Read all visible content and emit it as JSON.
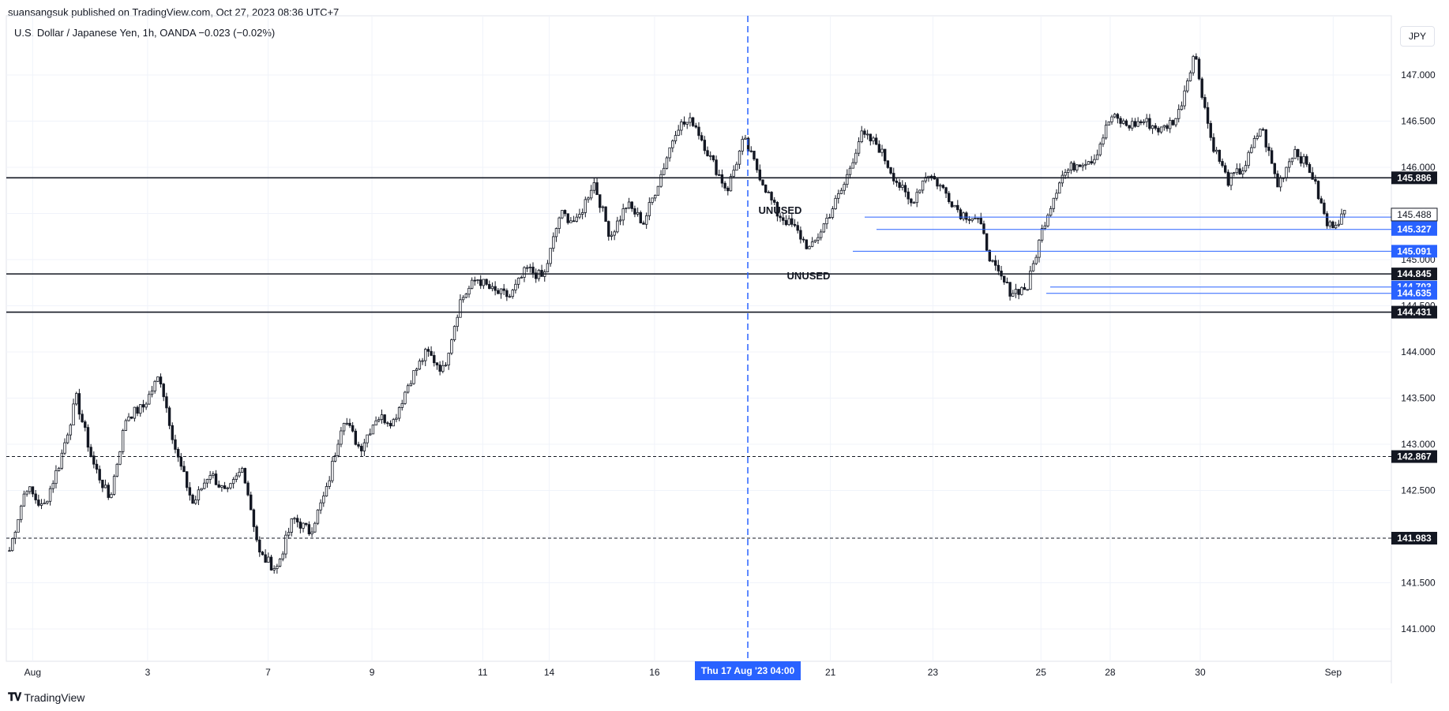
{
  "header": {
    "publisher_line": "suansangsuk published on TradingView.com, Oct 27, 2023 08:36 UTC+7",
    "symbol_line": "U.S. Dollar / Japanese Yen, 1h, OANDA  −0.023 (−0.02%)",
    "currency_button": "JPY"
  },
  "footer": {
    "logo_icon": "tradingview-logo-icon",
    "logo_text": "TradingView"
  },
  "chart_data": {
    "type": "candlestick",
    "symbol": "U.S. Dollar / Japanese Yen",
    "interval": "1h",
    "source": "OANDA",
    "change": "−0.023 (−0.02%)",
    "ylim": [
      140.65,
      147.4
    ],
    "y_ticks": [
      "147.000",
      "146.500",
      "146.000",
      "145.500",
      "145.000",
      "144.500",
      "144.000",
      "143.500",
      "143.000",
      "142.500",
      "142.000",
      "141.500",
      "141.000"
    ],
    "x_ticks": [
      "Aug",
      "3",
      "7",
      "9",
      "11",
      "14",
      "16",
      "21",
      "23",
      "25",
      "28",
      "30",
      "Sep"
    ],
    "crosshair_label": "Thu 17 Aug '23   04:00",
    "close_path": [
      {
        "date": "Aug 1",
        "close": 141.85
      },
      {
        "date": "Aug 1",
        "close": 142.55
      },
      {
        "date": "Aug 2",
        "close": 142.3
      },
      {
        "date": "Aug 2",
        "close": 142.8
      },
      {
        "date": "Aug 2",
        "close": 143.5
      },
      {
        "date": "Aug 3",
        "close": 142.8
      },
      {
        "date": "Aug 3",
        "close": 142.4
      },
      {
        "date": "Aug 3",
        "close": 143.3
      },
      {
        "date": "Aug 4",
        "close": 143.4
      },
      {
        "date": "Aug 4",
        "close": 143.75
      },
      {
        "date": "Aug 4",
        "close": 142.9
      },
      {
        "date": "Aug 4",
        "close": 142.35
      },
      {
        "date": "Aug 5",
        "close": 142.7
      },
      {
        "date": "Aug 6",
        "close": 142.45
      },
      {
        "date": "Aug 6",
        "close": 142.75
      },
      {
        "date": "Aug 7",
        "close": 141.8
      },
      {
        "date": "Aug 7",
        "close": 141.65
      },
      {
        "date": "Aug 8",
        "close": 142.2
      },
      {
        "date": "Aug 8",
        "close": 142.05
      },
      {
        "date": "Aug 8",
        "close": 142.5
      },
      {
        "date": "Aug 8",
        "close": 143.3
      },
      {
        "date": "Aug 9",
        "close": 142.95
      },
      {
        "date": "Aug 9",
        "close": 143.3
      },
      {
        "date": "Aug 10",
        "close": 143.25
      },
      {
        "date": "Aug 10",
        "close": 143.7
      },
      {
        "date": "Aug 10",
        "close": 144.0
      },
      {
        "date": "Aug 11",
        "close": 143.8
      },
      {
        "date": "Aug 11",
        "close": 144.55
      },
      {
        "date": "Aug 11",
        "close": 144.8
      },
      {
        "date": "Aug 12",
        "close": 144.65
      },
      {
        "date": "Aug 13",
        "close": 144.6
      },
      {
        "date": "Aug 14",
        "close": 144.9
      },
      {
        "date": "Aug 14",
        "close": 144.8
      },
      {
        "date": "Aug 14",
        "close": 145.5
      },
      {
        "date": "Aug 15",
        "close": 145.4
      },
      {
        "date": "Aug 15",
        "close": 145.85
      },
      {
        "date": "Aug 15",
        "close": 145.25
      },
      {
        "date": "Aug 16",
        "close": 145.6
      },
      {
        "date": "Aug 16",
        "close": 145.4
      },
      {
        "date": "Aug 16",
        "close": 145.9
      },
      {
        "date": "Aug 17",
        "close": 146.45
      },
      {
        "date": "Aug 17",
        "close": 146.5
      },
      {
        "date": "Aug 17",
        "close": 146.1
      },
      {
        "date": "Aug 18",
        "close": 145.75
      },
      {
        "date": "Aug 18",
        "close": 146.3
      },
      {
        "date": "Aug 18",
        "close": 145.9
      },
      {
        "date": "Aug 19",
        "close": 145.5
      },
      {
        "date": "Aug 20",
        "close": 145.35
      },
      {
        "date": "Aug 21",
        "close": 145.1
      },
      {
        "date": "Aug 21",
        "close": 145.45
      },
      {
        "date": "Aug 21",
        "close": 145.8
      },
      {
        "date": "Aug 22",
        "close": 146.35
      },
      {
        "date": "Aug 22",
        "close": 146.25
      },
      {
        "date": "Aug 22",
        "close": 145.9
      },
      {
        "date": "Aug 23",
        "close": 145.6
      },
      {
        "date": "Aug 23",
        "close": 145.95
      },
      {
        "date": "Aug 23",
        "close": 145.75
      },
      {
        "date": "Aug 24",
        "close": 145.5
      },
      {
        "date": "Aug 24",
        "close": 145.45
      },
      {
        "date": "Aug 24",
        "close": 144.9
      },
      {
        "date": "Aug 24",
        "close": 144.65
      },
      {
        "date": "Aug 25",
        "close": 144.7
      },
      {
        "date": "Aug 25",
        "close": 145.4
      },
      {
        "date": "Aug 25",
        "close": 145.9
      },
      {
        "date": "Aug 26",
        "close": 146.05
      },
      {
        "date": "Aug 27",
        "close": 146.1
      },
      {
        "date": "Aug 28",
        "close": 146.55
      },
      {
        "date": "Aug 28",
        "close": 146.45
      },
      {
        "date": "Aug 28",
        "close": 146.5
      },
      {
        "date": "Aug 29",
        "close": 146.4
      },
      {
        "date": "Aug 29",
        "close": 146.55
      },
      {
        "date": "Aug 29",
        "close": 147.25
      },
      {
        "date": "Aug 30",
        "close": 146.3
      },
      {
        "date": "Aug 30",
        "close": 145.85
      },
      {
        "date": "Aug 30",
        "close": 146.0
      },
      {
        "date": "Aug 31",
        "close": 146.45
      },
      {
        "date": "Aug 31",
        "close": 145.8
      },
      {
        "date": "Aug 31",
        "close": 146.2
      },
      {
        "date": "Sep 1",
        "close": 145.95
      },
      {
        "date": "Sep 1",
        "close": 145.35
      },
      {
        "date": "Sep 1",
        "close": 145.49
      }
    ],
    "horizontal_levels": [
      {
        "price": 145.886,
        "label": "145.886",
        "style": "solid",
        "color": "#131722"
      },
      {
        "price": 144.845,
        "label": "144.845",
        "style": "solid",
        "color": "#131722"
      },
      {
        "price": 144.431,
        "label": "144.431",
        "style": "solid",
        "color": "#131722"
      },
      {
        "price": 142.867,
        "label": "142.867",
        "style": "dashed",
        "color": "#131722"
      },
      {
        "price": 141.983,
        "label": "141.983",
        "style": "dashed",
        "color": "#131722"
      }
    ],
    "ray_levels": [
      {
        "price": 145.461,
        "label": "145.461",
        "color": "#2962ff"
      },
      {
        "price": 145.327,
        "label": "145.327",
        "color": "#2962ff"
      },
      {
        "price": 145.091,
        "label": "145.091",
        "color": "#2962ff"
      },
      {
        "price": 144.703,
        "label": "144.703",
        "color": "#2962ff"
      },
      {
        "price": 144.635,
        "label": "144.635",
        "color": "#2962ff"
      }
    ],
    "last_price": {
      "price": 145.488,
      "label": "145.488"
    },
    "annotations": [
      {
        "text": "UNUSED",
        "price": 145.53
      },
      {
        "text": "UNUSED",
        "price": 144.82
      }
    ],
    "colors": {
      "candle": "#131722",
      "grid": "#f0f3fa",
      "crosshair": "#2962ff",
      "ray": "#2962ff"
    }
  }
}
